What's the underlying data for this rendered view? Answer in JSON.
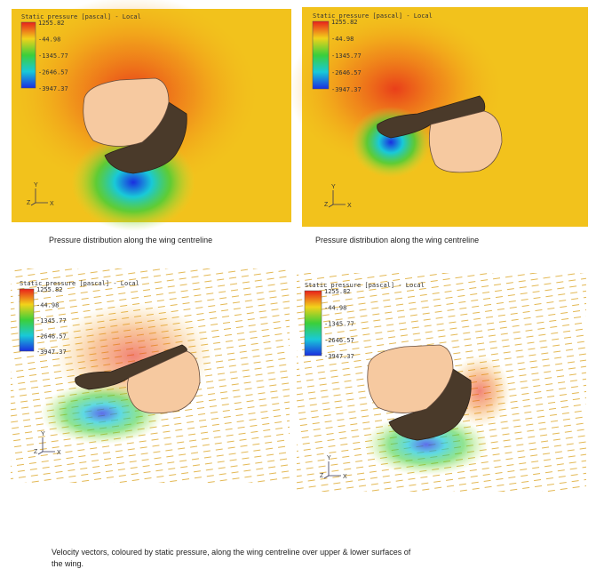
{
  "panels": [
    {
      "legend": {
        "title": "Static pressure [pascal] - Local",
        "labels": [
          "1255.82",
          "-44.98",
          "-1345.77",
          "-2646.57",
          "-3947.37"
        ]
      },
      "axes": {
        "y": "Y",
        "z": "Z",
        "x": "X"
      }
    },
    {
      "legend": {
        "title": "Static pressure [pascal] - Local",
        "labels": [
          "1255.82",
          "-44.98",
          "-1345.77",
          "-2646.57",
          "-3947.37"
        ]
      },
      "axes": {
        "y": "Y",
        "z": "Z",
        "x": "X"
      }
    },
    {
      "legend": {
        "title": "Static pressure [pascal] - Local",
        "labels": [
          "1255.82",
          "-44.98",
          "-1345.77",
          "-2646.57",
          "-3947.37"
        ]
      },
      "axes": {
        "y": "Y",
        "z": "Z",
        "x": "X"
      }
    },
    {
      "legend": {
        "title": "Static pressure [pascal] - Local",
        "labels": [
          "1255.82",
          "-44.98",
          "-1345.77",
          "-2646.57",
          "-3947.37"
        ]
      },
      "axes": {
        "y": "Y",
        "z": "Z",
        "x": "X"
      }
    }
  ],
  "captions": [
    "Pressure distribution along the wing centreline",
    "Pressure distribution along the wing centreline"
  ],
  "figure_caption": {
    "lines": [
      "Velocity vectors, coloured by static pressure, along the wing centreline over upper & lower surfaces of",
      "the wing."
    ]
  }
}
